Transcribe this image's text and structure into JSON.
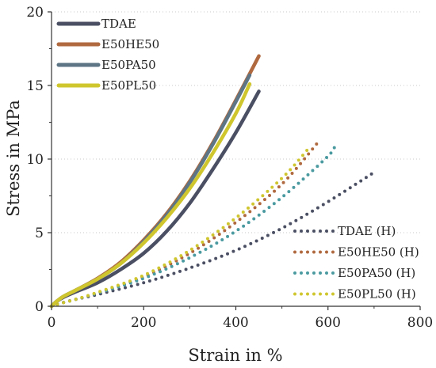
{
  "chart_data": {
    "type": "line",
    "title": "",
    "xlabel": "Strain in %",
    "ylabel": "Stress in MPa",
    "xlim": [
      0,
      800
    ],
    "ylim": [
      0,
      20
    ],
    "xticks": [
      0,
      200,
      400,
      600,
      800
    ],
    "yticks": [
      0,
      5,
      10,
      15,
      20
    ],
    "grid": "horizontal dotted",
    "legends": [
      {
        "placement": "top-left",
        "entries": [
          "TDAE",
          "E50HE50",
          "E50PA50",
          "E50PL50"
        ]
      },
      {
        "placement": "bottom-right",
        "entries": [
          "TDAE (H)",
          "E50HE50 (H)",
          "E50PA50 (H)",
          "E50PL50 (H)"
        ]
      }
    ],
    "series": [
      {
        "name": "TDAE",
        "color": "#4b4f63",
        "style": "solid",
        "points": [
          [
            0,
            0
          ],
          [
            10,
            0.3
          ],
          [
            25,
            0.6
          ],
          [
            50,
            0.95
          ],
          [
            100,
            1.6
          ],
          [
            150,
            2.5
          ],
          [
            200,
            3.6
          ],
          [
            250,
            5.1
          ],
          [
            300,
            7.0
          ],
          [
            350,
            9.3
          ],
          [
            400,
            11.8
          ],
          [
            450,
            14.6
          ]
        ]
      },
      {
        "name": "E50HE50",
        "color": "#b0693f",
        "style": "solid",
        "points": [
          [
            0,
            0
          ],
          [
            10,
            0.3
          ],
          [
            25,
            0.65
          ],
          [
            50,
            1.05
          ],
          [
            100,
            1.9
          ],
          [
            150,
            3.0
          ],
          [
            200,
            4.5
          ],
          [
            250,
            6.3
          ],
          [
            300,
            8.5
          ],
          [
            350,
            11.1
          ],
          [
            400,
            14.0
          ],
          [
            450,
            17.0
          ]
        ]
      },
      {
        "name": "E50PA50",
        "color": "#5d7585",
        "style": "solid",
        "points": [
          [
            0,
            0
          ],
          [
            10,
            0.3
          ],
          [
            25,
            0.65
          ],
          [
            50,
            1.05
          ],
          [
            100,
            1.85
          ],
          [
            150,
            2.9
          ],
          [
            200,
            4.4
          ],
          [
            250,
            6.2
          ],
          [
            300,
            8.4
          ],
          [
            350,
            11.0
          ],
          [
            400,
            13.9
          ],
          [
            430,
            15.7
          ]
        ]
      },
      {
        "name": "E50PL50",
        "color": "#cfc62e",
        "style": "solid",
        "points": [
          [
            0,
            0
          ],
          [
            10,
            0.3
          ],
          [
            25,
            0.65
          ],
          [
            50,
            1.05
          ],
          [
            100,
            1.85
          ],
          [
            150,
            2.9
          ],
          [
            200,
            4.3
          ],
          [
            250,
            6.0
          ],
          [
            300,
            8.0
          ],
          [
            350,
            10.4
          ],
          [
            400,
            13.1
          ],
          [
            430,
            15.1
          ]
        ]
      },
      {
        "name": "TDAE (H)",
        "color": "#4b4f63",
        "style": "dotted",
        "points": [
          [
            0,
            0
          ],
          [
            20,
            0.2
          ],
          [
            50,
            0.45
          ],
          [
            100,
            0.8
          ],
          [
            200,
            1.6
          ],
          [
            300,
            2.6
          ],
          [
            400,
            3.8
          ],
          [
            500,
            5.3
          ],
          [
            600,
            7.1
          ],
          [
            700,
            9.1
          ]
        ]
      },
      {
        "name": "E50HE50 (H)",
        "color": "#b0693f",
        "style": "dotted",
        "points": [
          [
            0,
            0
          ],
          [
            20,
            0.2
          ],
          [
            50,
            0.45
          ],
          [
            100,
            0.9
          ],
          [
            200,
            2.0
          ],
          [
            300,
            3.6
          ],
          [
            400,
            5.7
          ],
          [
            500,
            8.3
          ],
          [
            580,
            11.2
          ]
        ]
      },
      {
        "name": "E50PA50 (H)",
        "color": "#4a9aa0",
        "style": "dotted",
        "points": [
          [
            0,
            0
          ],
          [
            20,
            0.2
          ],
          [
            50,
            0.45
          ],
          [
            100,
            0.9
          ],
          [
            200,
            1.9
          ],
          [
            300,
            3.3
          ],
          [
            400,
            5.1
          ],
          [
            500,
            7.4
          ],
          [
            600,
            10.2
          ],
          [
            615,
            11.0
          ]
        ]
      },
      {
        "name": "E50PL50 (H)",
        "color": "#cfc62e",
        "style": "dotted",
        "points": [
          [
            0,
            0
          ],
          [
            20,
            0.2
          ],
          [
            50,
            0.45
          ],
          [
            100,
            0.95
          ],
          [
            200,
            2.1
          ],
          [
            300,
            3.8
          ],
          [
            400,
            6.0
          ],
          [
            500,
            8.7
          ],
          [
            560,
            10.8
          ]
        ]
      }
    ]
  }
}
